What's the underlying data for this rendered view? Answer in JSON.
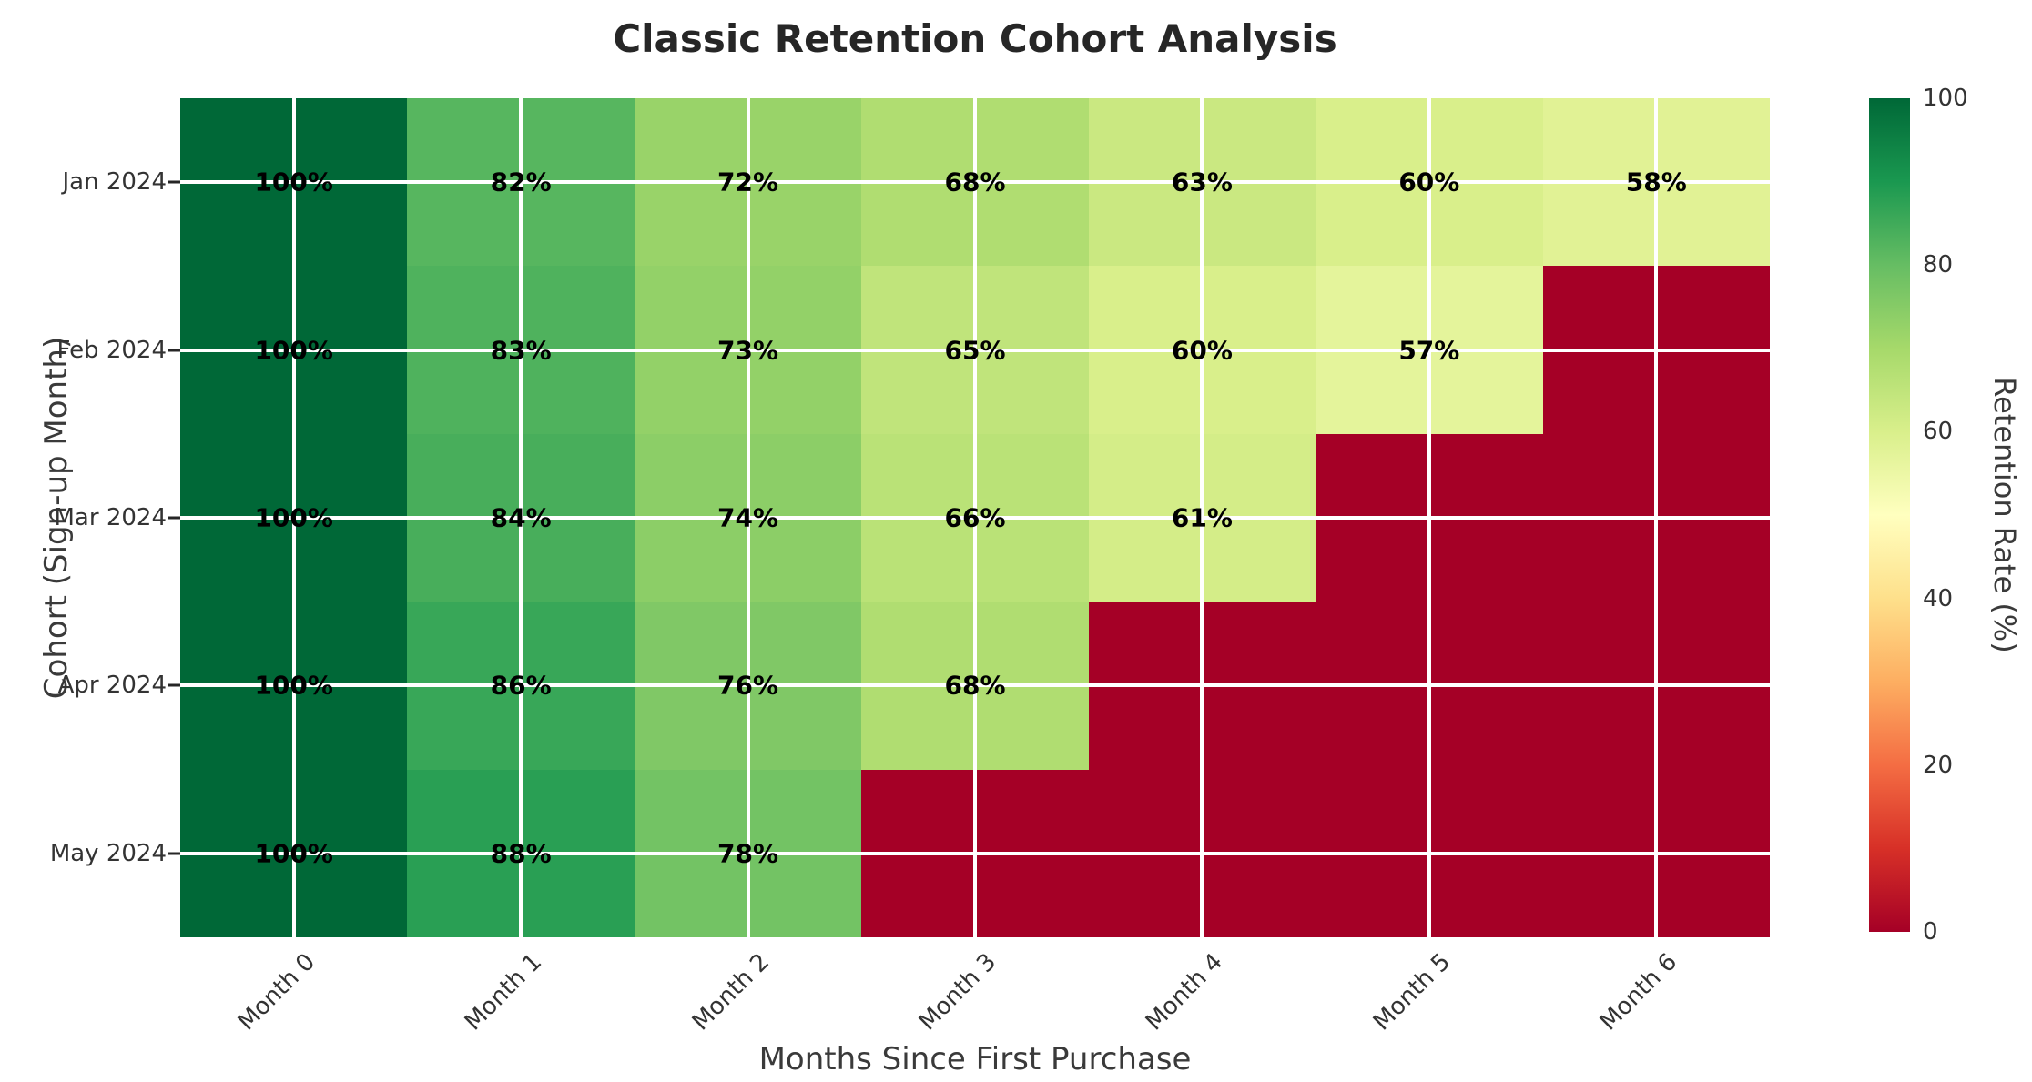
{
  "chart_data": {
    "type": "heatmap",
    "title": "Classic Retention Cohort Analysis",
    "xlabel": "Months Since First Purchase",
    "ylabel": "Cohort (Sign-up Month)",
    "x_categories": [
      "Month 0",
      "Month 1",
      "Month 2",
      "Month 3",
      "Month 4",
      "Month 5",
      "Month 6"
    ],
    "y_categories": [
      "Jan 2024",
      "Feb 2024",
      "Mar 2024",
      "Apr 2024",
      "May 2024"
    ],
    "values": [
      [
        100,
        82,
        72,
        68,
        63,
        60,
        58
      ],
      [
        100,
        83,
        73,
        65,
        60,
        57,
        null
      ],
      [
        100,
        84,
        74,
        66,
        61,
        null,
        null
      ],
      [
        100,
        86,
        76,
        68,
        null,
        null,
        null
      ],
      [
        100,
        88,
        78,
        null,
        null,
        null,
        null
      ]
    ],
    "value_suffix": "%",
    "vmin": 0,
    "vmax": 100,
    "missing_fill_value": 0,
    "grid": {
      "on": true,
      "color": "#ffffff"
    },
    "legend_position": "right",
    "colormap": {
      "name": "RdYlGn",
      "stops": [
        {
          "value": 0,
          "color": "#a50026"
        },
        {
          "value": 10,
          "color": "#d73027"
        },
        {
          "value": 20,
          "color": "#f46d43"
        },
        {
          "value": 30,
          "color": "#fdae61"
        },
        {
          "value": 40,
          "color": "#fee08b"
        },
        {
          "value": 50,
          "color": "#ffffbf"
        },
        {
          "value": 60,
          "color": "#d9ef8b"
        },
        {
          "value": 70,
          "color": "#a6d96a"
        },
        {
          "value": 80,
          "color": "#66bd63"
        },
        {
          "value": 90,
          "color": "#1a9850"
        },
        {
          "value": 100,
          "color": "#006837"
        }
      ]
    },
    "colorbar": {
      "label": "Retention Rate (%)",
      "ticks": [
        0,
        20,
        40,
        60,
        80,
        100
      ]
    },
    "text_colors": {
      "title": "#262626",
      "axis_labels": "#3a3a3a",
      "tick_labels": "#333333",
      "cell_values": "#000000"
    }
  }
}
